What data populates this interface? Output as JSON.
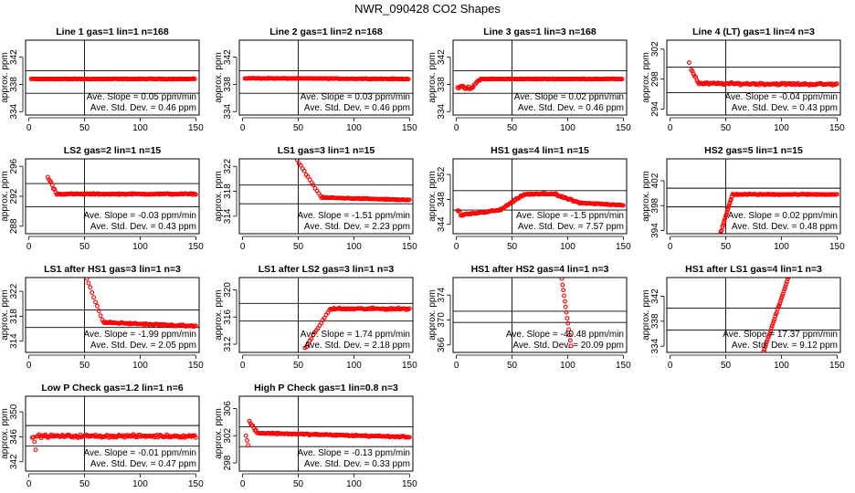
{
  "title": "NWR_090428  CO2 Shapes",
  "ylabel": "approx. ppm",
  "x_ticks": [
    0,
    50,
    100,
    150
  ],
  "xlim": [
    -3,
    153
  ],
  "colors": {
    "points": "#ff0000",
    "axes": "#000000"
  },
  "chart_data": [
    {
      "type": "scatter",
      "title": "Line 1 gas=1 lin=1 n=168",
      "ylim": [
        333.5,
        344.5
      ],
      "y_ticks": [
        334,
        338,
        342
      ],
      "hlines": [
        336.7,
        340.0
      ],
      "vline": 50,
      "slope_label": "Ave. Slope =",
      "slope": "0.05",
      "slope_unit": "ppm/min",
      "sd_label": "Ave. Std. Dev. =",
      "sd": "0.46",
      "sd_unit": "ppm",
      "segments": [
        [
          2,
          149,
          338.8,
          338.8,
          0.07,
          1.0
        ]
      ]
    },
    {
      "type": "scatter",
      "title": "Line 2 gas=1 lin=2 n=168",
      "ylim": [
        333.5,
        344.5
      ],
      "y_ticks": [
        334,
        338,
        342
      ],
      "hlines": [
        336.7,
        340.0
      ],
      "vline": 50,
      "slope_label": "Ave. Slope =",
      "slope": "0.03",
      "slope_unit": "ppm/min",
      "sd_label": "Ave. Std. Dev. =",
      "sd": "0.46",
      "sd_unit": "ppm",
      "segments": [
        [
          2,
          149,
          338.9,
          338.8,
          0.07,
          1.0
        ]
      ]
    },
    {
      "type": "scatter",
      "title": "Line 3 gas=1 lin=3 n=168",
      "ylim": [
        333.5,
        344.5
      ],
      "y_ticks": [
        334,
        338,
        342
      ],
      "hlines": [
        336.7,
        340.0
      ],
      "vline": 50,
      "slope_label": "Ave. Slope =",
      "slope": "0.02",
      "slope_unit": "ppm/min",
      "sd_label": "Ave. Std. Dev. =",
      "sd": "0.46",
      "sd_unit": "ppm",
      "segments": [
        [
          1,
          12,
          337.6,
          337.4,
          0.35,
          1.0
        ],
        [
          13,
          21,
          337.3,
          338.8,
          0.3,
          1.0
        ],
        [
          22,
          149,
          338.8,
          338.8,
          0.07,
          1.0
        ]
      ]
    },
    {
      "type": "scatter",
      "title": "Line 4 (LT) gas=1 lin=4 n=3",
      "ylim": [
        293.2,
        303.2
      ],
      "y_ticks": [
        294,
        298,
        302
      ],
      "hlines": [
        296.2,
        299.6
      ],
      "vline": 50,
      "slope_label": "Ave. Slope =",
      "slope": "-0.04",
      "slope_unit": "ppm/min",
      "sd_label": "Ave. Std. Dev. =",
      "sd": "0.43",
      "sd_unit": "ppm",
      "segments": [
        [
          17,
          17,
          300.2,
          300.2,
          0,
          1.0
        ],
        [
          19,
          25,
          299.3,
          297.6,
          0.2,
          1.0
        ],
        [
          26,
          150,
          297.4,
          297.3,
          0.22,
          1.0
        ]
      ]
    },
    {
      "type": "scatter",
      "title": "LS2 gas=2 lin=1 n=15",
      "ylim": [
        287.0,
        297.0
      ],
      "y_ticks": [
        288,
        292,
        296
      ],
      "hlines": [
        290.6,
        293.7
      ],
      "vline": 50,
      "slope_label": "Ave. Slope =",
      "slope": "-0.03",
      "slope_unit": "ppm/min",
      "sd_label": "Ave. Std. Dev. =",
      "sd": "0.43",
      "sd_unit": "ppm",
      "segments": [
        [
          17,
          24,
          294.6,
          292.6,
          0.25,
          1.0
        ],
        [
          25,
          150,
          292.3,
          292.3,
          0.12,
          1.0
        ]
      ]
    },
    {
      "type": "scatter",
      "title": "LS1 gas=3 lin=1 n=15",
      "ylim": [
        311.2,
        323.2
      ],
      "y_ticks": [
        314,
        318,
        322
      ],
      "hlines": [
        316.0,
        319.0
      ],
      "vline": 50,
      "slope_label": "Ave. Slope =",
      "slope": "-1.51",
      "slope_unit": "ppm/min",
      "sd_label": "Ave. Std. Dev. =",
      "sd": "2.23",
      "sd_unit": "ppm",
      "segments": [
        [
          49,
          70,
          323.0,
          317.2,
          0.15,
          1.6
        ],
        [
          71,
          150,
          317.0,
          316.6,
          0.12,
          1.0
        ]
      ]
    },
    {
      "type": "scatter",
      "title": "HS1 gas=4 lin=1 n=15",
      "ylim": [
        342.5,
        354.5
      ],
      "y_ticks": [
        344,
        348,
        352
      ],
      "hlines": [
        346.3,
        349.4
      ],
      "vline": 50,
      "slope_label": "Ave. Slope =",
      "slope": "-1.5",
      "slope_unit": "ppm/min",
      "sd_label": "Ave. Std. Dev. =",
      "sd": "7.57",
      "sd_unit": "ppm",
      "segments": [
        [
          1,
          4,
          346.3,
          345.4,
          0.4,
          1.0
        ],
        [
          5,
          40,
          345.5,
          346.3,
          0.18,
          1.0
        ],
        [
          41,
          60,
          346.5,
          348.7,
          0.2,
          1.0
        ],
        [
          61,
          90,
          348.8,
          348.9,
          0.2,
          1.0
        ],
        [
          91,
          110,
          348.6,
          347.5,
          0.2,
          1.0
        ],
        [
          111,
          150,
          347.4,
          347.1,
          0.15,
          1.0
        ]
      ]
    },
    {
      "type": "scatter",
      "title": "HS2 gas=5 lin=1 n=15",
      "ylim": [
        393.5,
        405.5
      ],
      "y_ticks": [
        394,
        398,
        402
      ],
      "hlines": [
        397.8,
        400.8
      ],
      "vline": 50,
      "slope_label": "Ave. Slope =",
      "slope": "0.02",
      "slope_unit": "ppm/min",
      "sd_label": "Ave. Std. Dev. =",
      "sd": "0.48",
      "sd_unit": "ppm",
      "segments": [
        [
          44,
          56,
          392.8,
          399.8,
          0.2,
          0.6
        ],
        [
          57,
          150,
          399.8,
          399.8,
          0.12,
          1.0
        ]
      ]
    },
    {
      "type": "scatter",
      "title": "LS1 after HS1 gas=3 lin=1 n=3",
      "ylim": [
        312.2,
        324.2
      ],
      "y_ticks": [
        314,
        318,
        322
      ],
      "hlines": [
        316.2,
        319.0
      ],
      "vline": 50,
      "slope_label": "Ave. Slope =",
      "slope": "-1.99",
      "slope_unit": "ppm/min",
      "sd_label": "Ave. Std. Dev. =",
      "sd": "2.05",
      "sd_unit": "ppm",
      "segments": [
        [
          52,
          66,
          324.0,
          317.4,
          0.15,
          1.5
        ],
        [
          67,
          150,
          317.0,
          316.4,
          0.18,
          1.0
        ]
      ]
    },
    {
      "type": "scatter",
      "title": "LS1 after LS2 gas=3 lin=1 n=3",
      "ylim": [
        310.8,
        321.8
      ],
      "y_ticks": [
        312,
        316,
        320
      ],
      "hlines": [
        315.4,
        318.0
      ],
      "vline": 50,
      "slope_label": "Ave. Slope =",
      "slope": "1.74",
      "slope_unit": "ppm/min",
      "sd_label": "Ave. Std. Dev. =",
      "sd": "2.18",
      "sd_unit": "ppm",
      "segments": [
        [
          56,
          78,
          311.4,
          317.0,
          0.2,
          1.5
        ],
        [
          79,
          150,
          317.2,
          317.2,
          0.2,
          1.0
        ]
      ]
    },
    {
      "type": "scatter",
      "title": "HS1 after HS2 gas=4 lin=1 n=3",
      "ylim": [
        364.8,
        376.8
      ],
      "y_ticks": [
        366,
        370,
        374
      ],
      "hlines": [
        369.6,
        371.4
      ],
      "vline": 50,
      "slope_label": "Ave. Slope =",
      "slope": "-40.48",
      "slope_unit": "ppm/min",
      "sd_label": "Ave. Std. Dev. =",
      "sd": "20.09",
      "sd_unit": "ppm",
      "segments": [
        [
          94,
          103,
          377.5,
          365.8,
          0.15,
          0.7
        ]
      ]
    },
    {
      "type": "scatter",
      "title": "HS1 after LS1 gas=4 lin=1 n=3",
      "ylim": [
        333.0,
        345.0
      ],
      "y_ticks": [
        334,
        338,
        342
      ],
      "hlines": [
        336.6,
        340.1
      ],
      "vline": 50,
      "slope_label": "Ave. Slope =",
      "slope": "17.37",
      "slope_unit": "ppm/min",
      "sd_label": "Ave. Std. Dev. =",
      "sd": "9.12",
      "sd_unit": "ppm",
      "segments": [
        [
          84,
          107,
          333.2,
          345.4,
          0.15,
          0.7
        ]
      ]
    },
    {
      "type": "scatter",
      "title": "Low P Check gas=1.2 lin=1 n=6",
      "ylim": [
        340.5,
        352.5
      ],
      "y_ticks": [
        342,
        346,
        350
      ],
      "hlines": [
        344.5,
        347.8
      ],
      "vline": 50,
      "slope_label": "Ave. Slope =",
      "slope": "-0.01",
      "slope_unit": "ppm/min",
      "sd_label": "Ave. Std. Dev. =",
      "sd": "0.47",
      "sd_unit": "ppm",
      "segments": [
        [
          3,
          6,
          346.0,
          344.5,
          0.9,
          1.0
        ],
        [
          7,
          150,
          346.1,
          346.1,
          0.35,
          1.0
        ]
      ]
    },
    {
      "type": "scatter",
      "title": "High P Check gas=1 lin=0.8 n=3",
      "ylim": [
        296.8,
        307.8
      ],
      "y_ticks": [
        298,
        302,
        306
      ],
      "hlines": [
        300.4,
        303.3
      ],
      "vline": 50,
      "slope_label": "Ave. Slope =",
      "slope": "-0.13",
      "slope_unit": "ppm/min",
      "sd_label": "Ave. Std. Dev. =",
      "sd": "0.33",
      "sd_unit": "ppm",
      "segments": [
        [
          3,
          5,
          302.0,
          300.6,
          0.3,
          1.0
        ],
        [
          6,
          12,
          304.0,
          302.8,
          0.3,
          1.0
        ],
        [
          13,
          150,
          302.4,
          301.8,
          0.15,
          1.0
        ]
      ]
    }
  ]
}
